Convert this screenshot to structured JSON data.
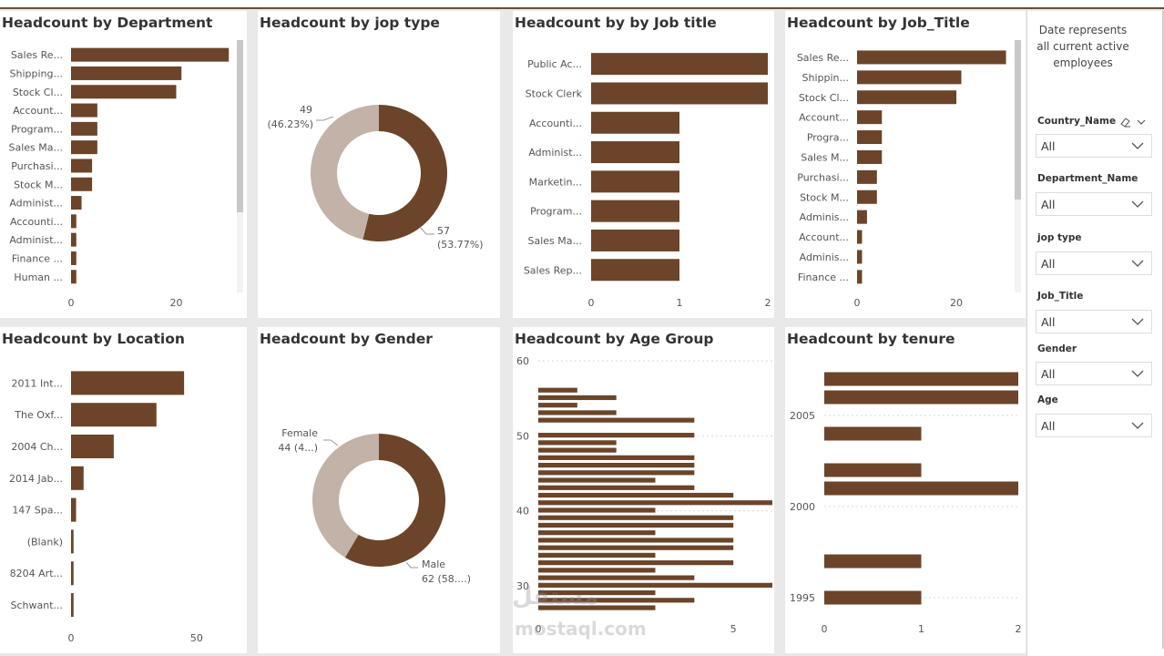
{
  "theme": {
    "bar": "#6b4429",
    "light": "#c2b2a8",
    "grid": "#d9d9d9"
  },
  "cards": {
    "department": {
      "title": "Headcount by Department",
      "chart_data": {
        "type": "bar",
        "orientation": "horizontal",
        "categories": [
          "Sales Re...",
          "Shipping...",
          "Stock Cl...",
          "Account...",
          "Program...",
          "Sales Ma...",
          "Purchasi...",
          "Stock M...",
          "Administ...",
          "Accounti...",
          "Administ...",
          "Finance ...",
          "Human ..."
        ],
        "values": [
          30,
          21,
          20,
          5,
          5,
          5,
          4,
          4,
          2,
          1,
          1,
          1,
          1
        ],
        "xlim": [
          0,
          31
        ],
        "xticks": [
          0,
          20
        ]
      }
    },
    "jobtype": {
      "title": "Headcount by jop type",
      "chart_data": {
        "type": "pie",
        "donut": true,
        "slices": [
          {
            "value": 57,
            "label": "57",
            "pct": "(53.77%)"
          },
          {
            "value": 49,
            "label": "49",
            "pct": "(46.23%)"
          }
        ]
      }
    },
    "jobtitle": {
      "title": "Headcount by by Job title",
      "chart_data": {
        "type": "bar",
        "orientation": "horizontal",
        "categories": [
          "Public Ac...",
          "Stock Clerk",
          "Accounti...",
          "Administ...",
          "Marketin...",
          "Program...",
          "Sales Ma...",
          "Sales Rep..."
        ],
        "values": [
          2,
          2,
          1,
          1,
          1,
          1,
          1,
          1
        ],
        "xlim": [
          0,
          2
        ],
        "xticks": [
          0,
          1,
          2
        ]
      }
    },
    "jobtitle2": {
      "title": "Headcount by Job_Title",
      "chart_data": {
        "type": "bar",
        "orientation": "horizontal",
        "categories": [
          "Sales Re...",
          "Shippin...",
          "Stock Cl...",
          "Account...",
          "Progra...",
          "Sales M...",
          "Purchasi...",
          "Stock M...",
          "Adminis...",
          "Account...",
          "Adminis...",
          "Finance ..."
        ],
        "values": [
          30,
          21,
          20,
          5,
          5,
          5,
          4,
          4,
          2,
          1,
          1,
          1
        ],
        "xlim": [
          0,
          31
        ],
        "xticks": [
          0,
          20
        ]
      }
    },
    "location": {
      "title": "Headcount by Location",
      "chart_data": {
        "type": "bar",
        "orientation": "horizontal",
        "categories": [
          "2011 Int...",
          "The Oxf...",
          "2004 Ch...",
          "2014 Jab...",
          "147 Spa...",
          "(Blank)",
          "8204 Art...",
          "Schwant..."
        ],
        "values": [
          45,
          34,
          17,
          5,
          2,
          1,
          1,
          1
        ],
        "xlim": [
          0,
          62
        ],
        "xticks": [
          0,
          50
        ]
      }
    },
    "gender": {
      "title": "Headcount by Gender",
      "chart_data": {
        "type": "pie",
        "donut": true,
        "slices": [
          {
            "value": 62,
            "name": "Male",
            "label": "62 (58....)"
          },
          {
            "value": 44,
            "name": "Female",
            "label": "44 (4...)"
          }
        ]
      }
    },
    "agegroup": {
      "title": "Headcount by Age Group",
      "chart_data": {
        "type": "bar",
        "orientation": "horizontal",
        "y": [
          56,
          55,
          54,
          53,
          52,
          51,
          50,
          49,
          48,
          47,
          46,
          45,
          44,
          43,
          42,
          41,
          40,
          39,
          38,
          37,
          36,
          35,
          34,
          33,
          32,
          31,
          30,
          29,
          28,
          27,
          26
        ],
        "values": [
          1,
          2,
          1,
          2,
          4,
          0,
          4,
          2,
          2,
          4,
          4,
          4,
          3,
          4,
          5,
          6,
          3,
          5,
          5,
          3,
          5,
          5,
          3,
          5,
          3,
          4,
          6,
          3,
          4,
          3,
          0
        ],
        "ylim": [
          26,
          60
        ],
        "yticks": [
          30,
          40,
          50,
          60
        ],
        "xlim": [
          0,
          6
        ],
        "xticks": [
          0,
          5
        ]
      }
    },
    "tenure": {
      "title": "Headcount by tenure",
      "chart_data": {
        "type": "bar",
        "orientation": "horizontal",
        "y": [
          2007,
          2006,
          2004,
          2002,
          2001,
          1997,
          1995
        ],
        "values": [
          2,
          2,
          1,
          1,
          2,
          1,
          1
        ],
        "yticks": [
          2005,
          2000,
          1995
        ],
        "ylim": [
          1994,
          2008
        ],
        "xlim": [
          0,
          2
        ],
        "xticks": [
          0,
          1,
          2
        ]
      }
    }
  },
  "panel": {
    "note": "Date represents all current active employees",
    "slicers": [
      {
        "label": "Country_Name",
        "value": "All"
      },
      {
        "label": "Department_Name",
        "value": "All"
      },
      {
        "label": "jop type",
        "value": "All"
      },
      {
        "label": "Job_Title",
        "value": "All"
      },
      {
        "label": "Gender",
        "value": "All"
      },
      {
        "label": "Age",
        "value": "All"
      }
    ]
  },
  "watermark": {
    "line1": "مستقل",
    "line2": "mostaql.com"
  }
}
